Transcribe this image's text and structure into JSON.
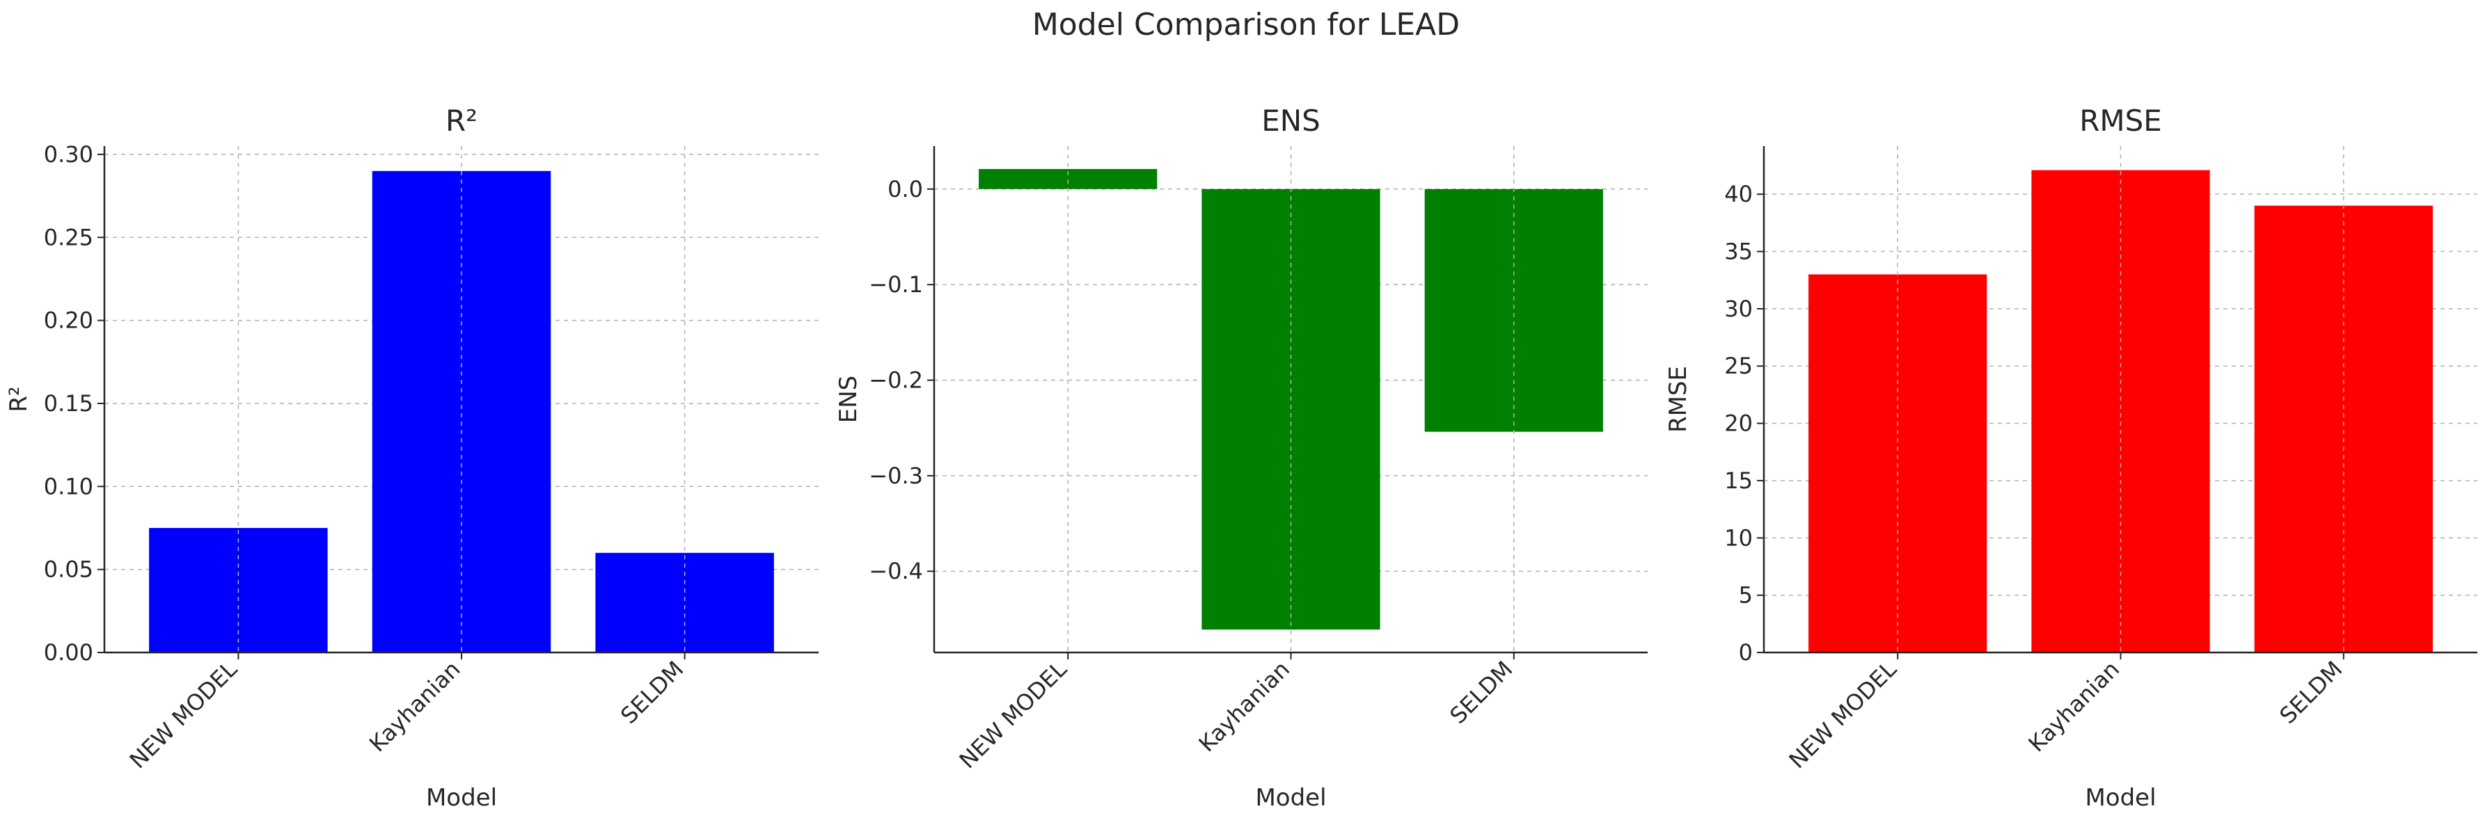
{
  "figure": {
    "suptitle": "Model Comparison for LEAD"
  },
  "chart_data": [
    {
      "type": "bar",
      "title": "R²",
      "xlabel": "Model",
      "ylabel": "R²",
      "categories": [
        "NEW MODEL",
        "Kayhanian",
        "SELDM"
      ],
      "values": [
        0.075,
        0.29,
        0.06
      ],
      "ylim": [
        0,
        0.305
      ],
      "yticks": [
        0.0,
        0.05,
        0.1,
        0.15,
        0.2,
        0.25,
        0.3
      ],
      "ytick_labels": [
        "0.00",
        "0.05",
        "0.10",
        "0.15",
        "0.20",
        "0.25",
        "0.30"
      ],
      "color": "#0000ff",
      "grid": true
    },
    {
      "type": "bar",
      "title": "ENS",
      "xlabel": "Model",
      "ylabel": "ENS",
      "categories": [
        "NEW MODEL",
        "Kayhanian",
        "SELDM"
      ],
      "values": [
        0.021,
        -0.461,
        -0.254
      ],
      "ylim": [
        -0.485,
        0.045
      ],
      "yticks": [
        -0.4,
        -0.3,
        -0.2,
        -0.1,
        0.0
      ],
      "ytick_labels": [
        "−0.4",
        "−0.3",
        "−0.2",
        "−0.1",
        "0.0"
      ],
      "color": "#008000",
      "grid": true
    },
    {
      "type": "bar",
      "title": "RMSE",
      "xlabel": "Model",
      "ylabel": "RMSE",
      "categories": [
        "NEW MODEL",
        "Kayhanian",
        "SELDM"
      ],
      "values": [
        33,
        42.1,
        39
      ],
      "ylim": [
        0,
        44.2
      ],
      "yticks": [
        0,
        5,
        10,
        15,
        20,
        25,
        30,
        35,
        40
      ],
      "ytick_labels": [
        "0",
        "5",
        "10",
        "15",
        "20",
        "25",
        "30",
        "35",
        "40"
      ],
      "color": "#ff0000",
      "grid": true
    }
  ]
}
